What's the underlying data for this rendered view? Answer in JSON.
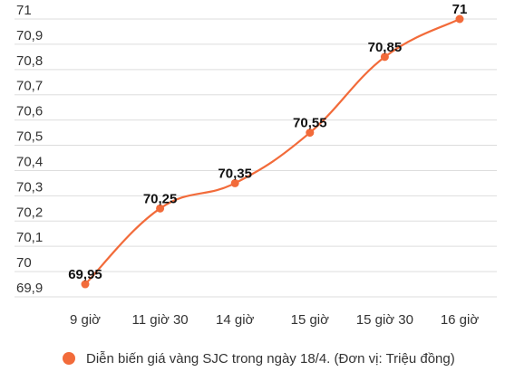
{
  "chart_data": {
    "type": "line",
    "categories": [
      "9 giờ",
      "11 giờ 30",
      "14 giờ",
      "15 giờ",
      "15 giờ 30",
      "16 giờ"
    ],
    "series": [
      {
        "name": "Diễn biến giá vàng SJC trong ngày 18/4. (Đơn vị: Triệu đồng)",
        "values": [
          69.95,
          70.25,
          70.35,
          70.55,
          70.85,
          71
        ],
        "data_labels": [
          "69,95",
          "70,25",
          "70,35",
          "70,55",
          "70,85",
          "71"
        ]
      }
    ],
    "y_ticks": [
      "71",
      "70,9",
      "70,8",
      "70,7",
      "70,6",
      "70,5",
      "70,4",
      "70,3",
      "70,2",
      "70,1",
      "70",
      "69,9"
    ],
    "ylim": [
      69.9,
      71
    ],
    "grid": true,
    "legend_position": "bottom",
    "colors": {
      "series": "#f26b3a",
      "grid": "#dddddd"
    }
  }
}
